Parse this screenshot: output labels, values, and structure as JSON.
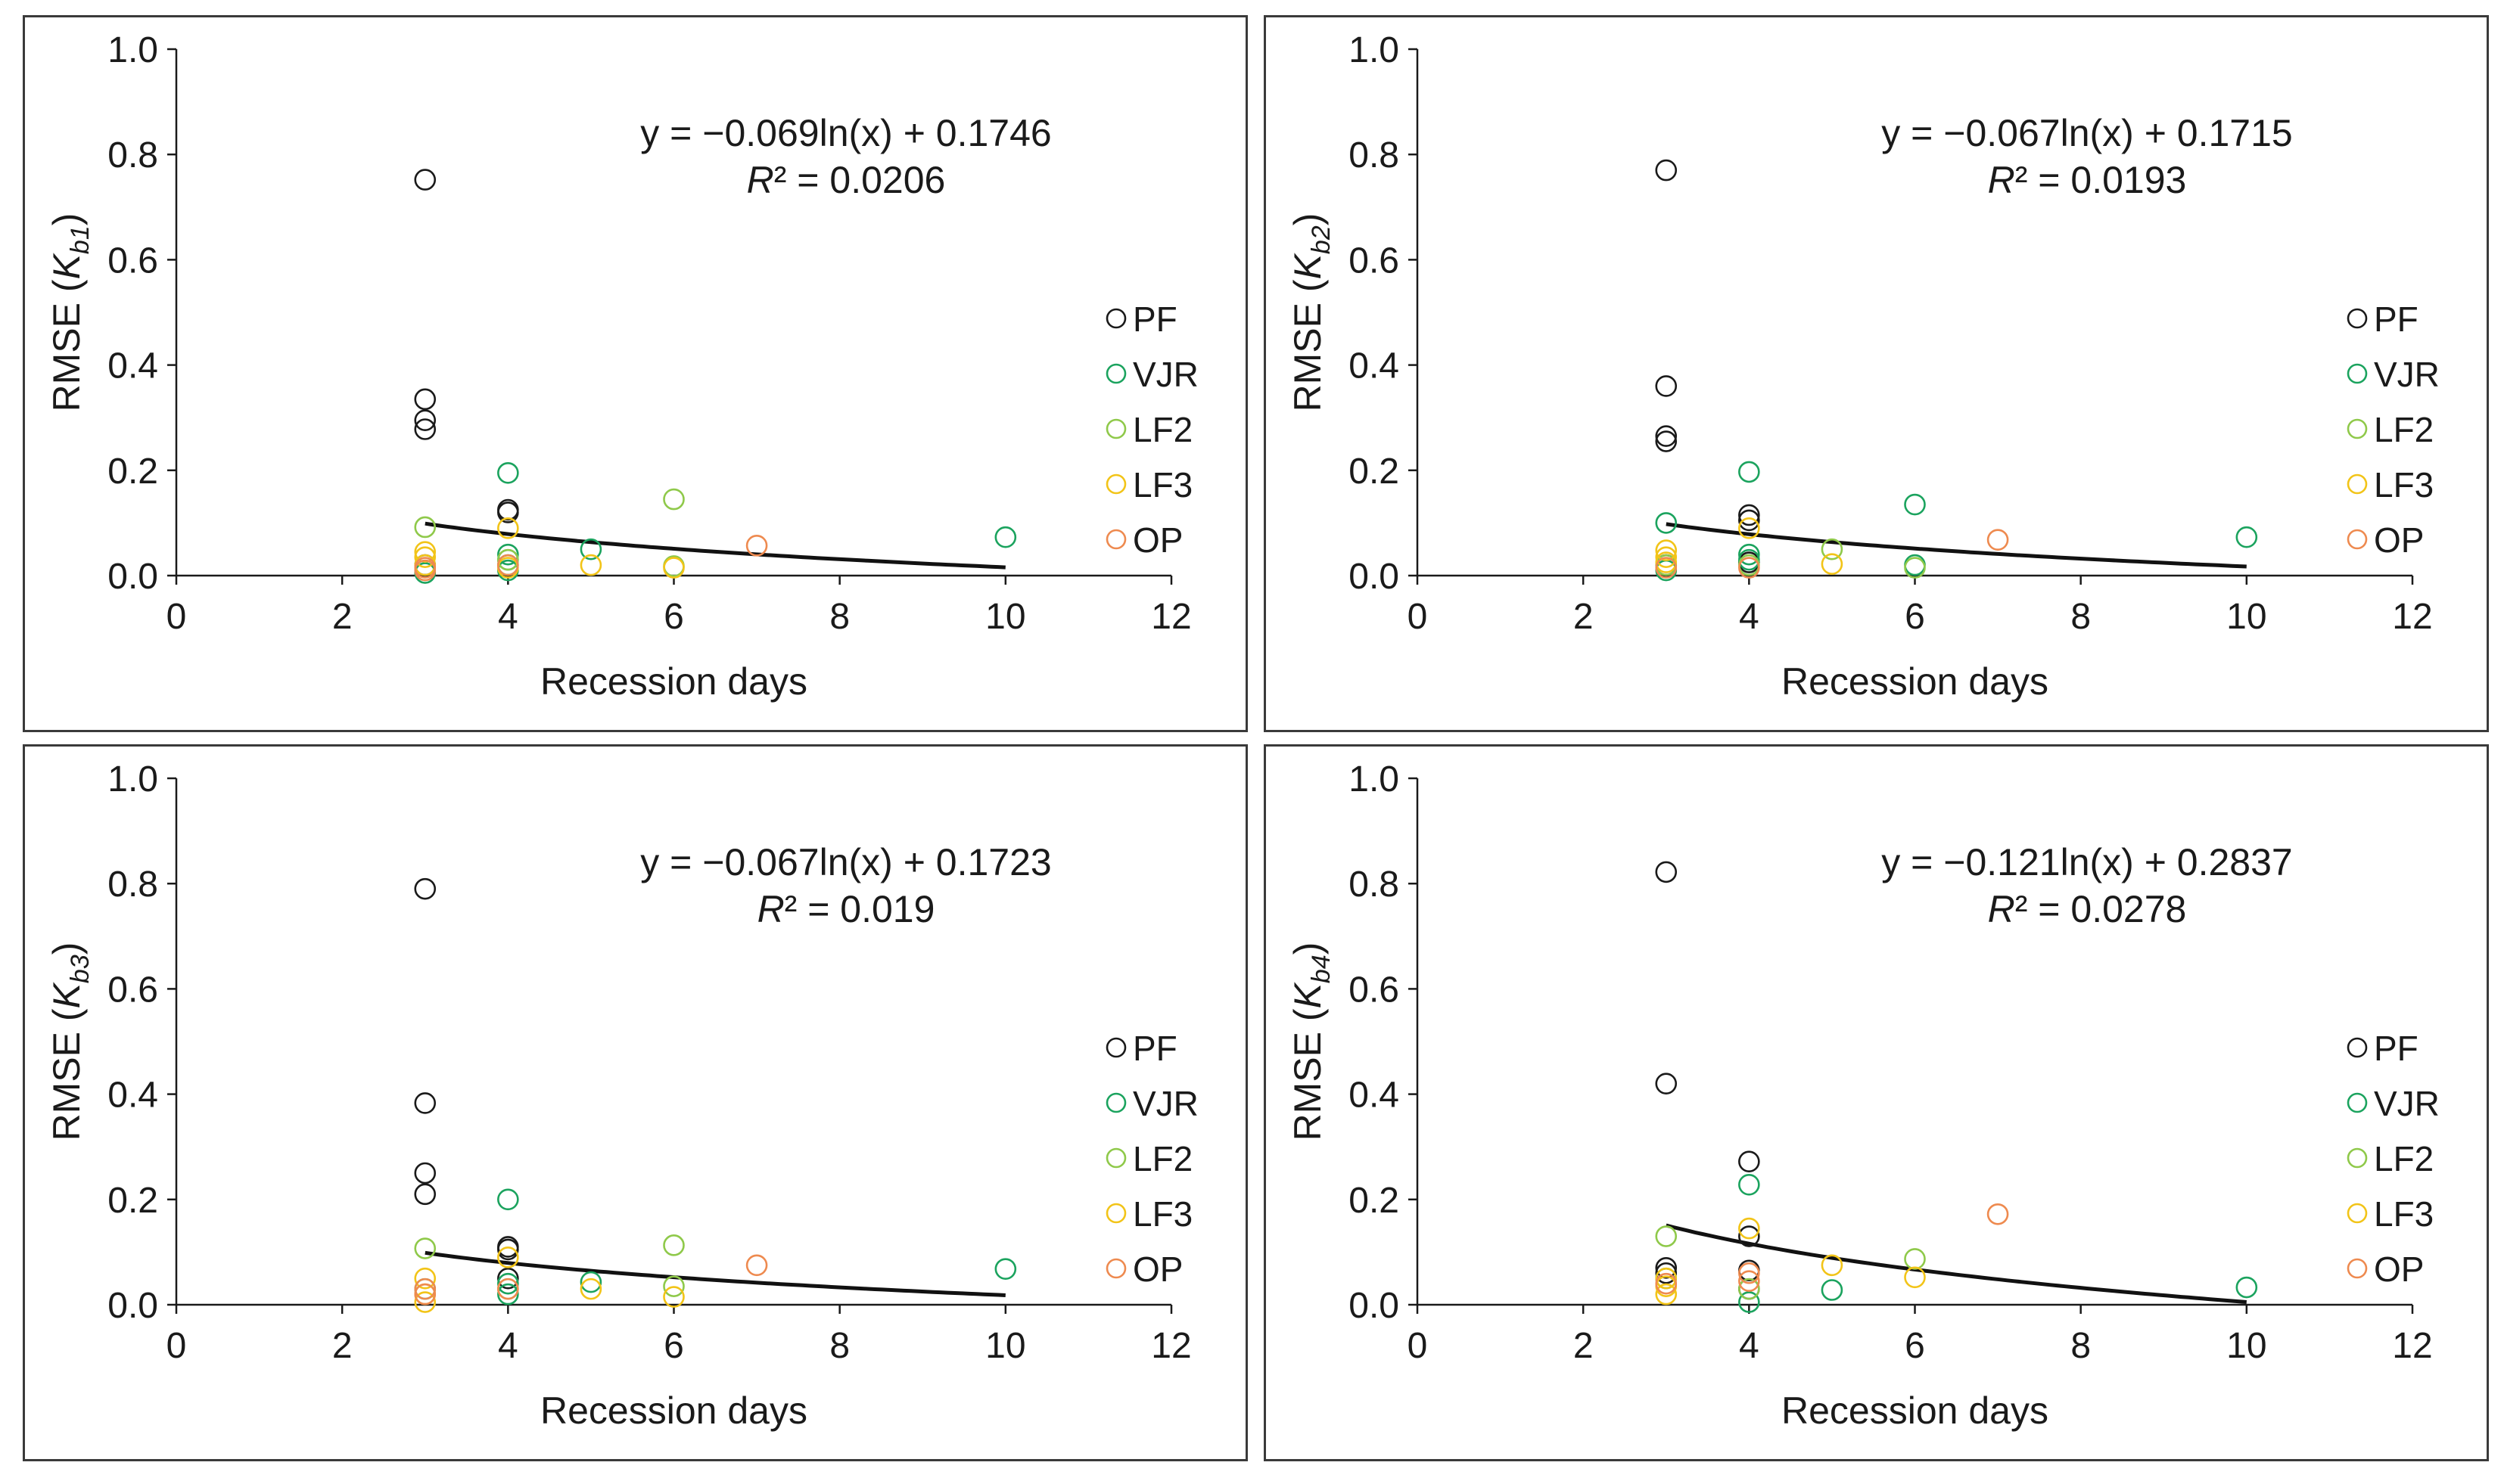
{
  "chart_data": [
    {
      "type": "scatter",
      "xlabel": "Recession days",
      "ylabel_prefix": "RMSE (",
      "ylabel_italic": "K",
      "ylabel_sub": "b1",
      "ylabel_suffix": ")",
      "xlim": [
        0,
        12
      ],
      "ylim": [
        0,
        1.0
      ],
      "x_ticks": [
        "0",
        "2",
        "4",
        "6",
        "8",
        "10",
        "12"
      ],
      "y_ticks": [
        "0.0",
        "0.2",
        "0.4",
        "0.6",
        "0.8",
        "1.0"
      ],
      "equation": "y = −0.069ln(x) + 0.1746",
      "r2_label": "R",
      "r2_value": "² = 0.0206",
      "trend": {
        "a": -0.069,
        "b": 0.1746,
        "x_range": [
          3,
          10
        ]
      },
      "series": [
        {
          "name": "PF",
          "color": "#1a1a1a",
          "points": [
            [
              3,
              0.752
            ],
            [
              3,
              0.335
            ],
            [
              3,
              0.295
            ],
            [
              3,
              0.278
            ],
            [
              3,
              0.02
            ],
            [
              4,
              0.125
            ],
            [
              4,
              0.12
            ]
          ]
        },
        {
          "name": "VJR",
          "color": "#1ba35e",
          "points": [
            [
              3,
              0.005
            ],
            [
              4,
              0.195
            ],
            [
              4,
              0.04
            ],
            [
              4,
              0.03
            ],
            [
              4,
              0.02
            ],
            [
              4,
              0.01
            ],
            [
              5,
              0.05
            ],
            [
              10,
              0.073
            ]
          ]
        },
        {
          "name": "LF2",
          "color": "#8fc94a",
          "points": [
            [
              3,
              0.092
            ],
            [
              4,
              0.03
            ],
            [
              6,
              0.145
            ],
            [
              6,
              0.018
            ]
          ]
        },
        {
          "name": "LF3",
          "color": "#f2c418",
          "points": [
            [
              3,
              0.045
            ],
            [
              3,
              0.035
            ],
            [
              3,
              0.02
            ],
            [
              4,
              0.09
            ],
            [
              4,
              0.015
            ],
            [
              5,
              0.02
            ],
            [
              6,
              0.015
            ]
          ]
        },
        {
          "name": "OP",
          "color": "#ee8a4f",
          "points": [
            [
              3,
              0.015
            ],
            [
              3,
              0.01
            ],
            [
              4,
              0.02
            ],
            [
              7,
              0.057
            ]
          ]
        }
      ]
    },
    {
      "type": "scatter",
      "xlabel": "Recession days",
      "ylabel_prefix": "RMSE (",
      "ylabel_italic": "K",
      "ylabel_sub": "b2",
      "ylabel_suffix": ")",
      "xlim": [
        0,
        12
      ],
      "ylim": [
        0,
        1.0
      ],
      "x_ticks": [
        "0",
        "2",
        "4",
        "6",
        "8",
        "10",
        "12"
      ],
      "y_ticks": [
        "0.0",
        "0.2",
        "0.4",
        "0.6",
        "0.8",
        "1.0"
      ],
      "equation": "y = −0.067ln(x) + 0.1715",
      "r2_label": "R",
      "r2_value": "² = 0.0193",
      "trend": {
        "a": -0.067,
        "b": 0.1715,
        "x_range": [
          3,
          10
        ]
      },
      "series": [
        {
          "name": "PF",
          "color": "#1a1a1a",
          "points": [
            [
              3,
              0.77
            ],
            [
              3,
              0.36
            ],
            [
              3,
              0.265
            ],
            [
              3,
              0.255
            ],
            [
              3,
              0.02
            ],
            [
              4,
              0.115
            ],
            [
              4,
              0.105
            ],
            [
              4,
              0.025
            ]
          ]
        },
        {
          "name": "VJR",
          "color": "#1ba35e",
          "points": [
            [
              3,
              0.1
            ],
            [
              3,
              0.01
            ],
            [
              4,
              0.197
            ],
            [
              4,
              0.04
            ],
            [
              4,
              0.03
            ],
            [
              6,
              0.135
            ],
            [
              6,
              0.02
            ],
            [
              10,
              0.073
            ]
          ]
        },
        {
          "name": "LF2",
          "color": "#8fc94a",
          "points": [
            [
              3,
              0.02
            ],
            [
              4,
              0.02
            ],
            [
              5,
              0.05
            ],
            [
              6,
              0.015
            ]
          ]
        },
        {
          "name": "LF3",
          "color": "#f2c418",
          "points": [
            [
              3,
              0.048
            ],
            [
              3,
              0.035
            ],
            [
              3,
              0.025
            ],
            [
              4,
              0.09
            ],
            [
              5,
              0.022
            ]
          ]
        },
        {
          "name": "OP",
          "color": "#ee8a4f",
          "points": [
            [
              3,
              0.015
            ],
            [
              4,
              0.015
            ],
            [
              7,
              0.068
            ]
          ]
        }
      ]
    },
    {
      "type": "scatter",
      "xlabel": "Recession days",
      "ylabel_prefix": "RMSE (",
      "ylabel_italic": "K",
      "ylabel_sub": "b3",
      "ylabel_suffix": ")",
      "xlim": [
        0,
        12
      ],
      "ylim": [
        0,
        1.0
      ],
      "x_ticks": [
        "0",
        "2",
        "4",
        "6",
        "8",
        "10",
        "12"
      ],
      "y_ticks": [
        "0.0",
        "0.2",
        "0.4",
        "0.6",
        "0.8",
        "1.0"
      ],
      "equation": "y = −0.067ln(x) + 0.1723",
      "r2_label": "R",
      "r2_value": "² = 0.019",
      "trend": {
        "a": -0.067,
        "b": 0.1723,
        "x_range": [
          3,
          10
        ]
      },
      "series": [
        {
          "name": "PF",
          "color": "#1a1a1a",
          "points": [
            [
              3,
              0.79
            ],
            [
              3,
              0.383
            ],
            [
              3,
              0.25
            ],
            [
              3,
              0.21
            ],
            [
              4,
              0.11
            ],
            [
              4,
              0.105
            ],
            [
              4,
              0.05
            ]
          ]
        },
        {
          "name": "VJR",
          "color": "#1ba35e",
          "points": [
            [
              3,
              0.03
            ],
            [
              4,
              0.2
            ],
            [
              4,
              0.04
            ],
            [
              4,
              0.02
            ],
            [
              5,
              0.043
            ],
            [
              10,
              0.068
            ]
          ]
        },
        {
          "name": "LF2",
          "color": "#8fc94a",
          "points": [
            [
              3,
              0.107
            ],
            [
              4,
              0.03
            ],
            [
              6,
              0.113
            ],
            [
              6,
              0.035
            ]
          ]
        },
        {
          "name": "LF3",
          "color": "#f2c418",
          "points": [
            [
              3,
              0.05
            ],
            [
              3,
              0.02
            ],
            [
              3,
              0.005
            ],
            [
              4,
              0.09
            ],
            [
              5,
              0.03
            ],
            [
              6,
              0.015
            ]
          ]
        },
        {
          "name": "OP",
          "color": "#ee8a4f",
          "points": [
            [
              3,
              0.03
            ],
            [
              3,
              0.02
            ],
            [
              4,
              0.03
            ],
            [
              7,
              0.075
            ]
          ]
        }
      ]
    },
    {
      "type": "scatter",
      "xlabel": "Recession days",
      "ylabel_prefix": "RMSE (",
      "ylabel_italic": "K",
      "ylabel_sub": "b4",
      "ylabel_suffix": ")",
      "xlim": [
        0,
        12
      ],
      "ylim": [
        0,
        1.0
      ],
      "x_ticks": [
        "0",
        "2",
        "4",
        "6",
        "8",
        "10",
        "12"
      ],
      "y_ticks": [
        "0.0",
        "0.2",
        "0.4",
        "0.6",
        "0.8",
        "1.0"
      ],
      "equation": "y = −0.121ln(x) + 0.2837",
      "r2_label": "R",
      "r2_value": "² = 0.0278",
      "trend": {
        "a": -0.121,
        "b": 0.2837,
        "x_range": [
          3,
          10
        ]
      },
      "series": [
        {
          "name": "PF",
          "color": "#1a1a1a",
          "points": [
            [
              3,
              0.822
            ],
            [
              3,
              0.42
            ],
            [
              3,
              0.07
            ],
            [
              3,
              0.06
            ],
            [
              4,
              0.272
            ],
            [
              4,
              0.13
            ],
            [
              4,
              0.065
            ],
            [
              4,
              0.03
            ]
          ]
        },
        {
          "name": "VJR",
          "color": "#1ba35e",
          "points": [
            [
              3,
              0.05
            ],
            [
              4,
              0.228
            ],
            [
              4,
              0.005
            ],
            [
              5,
              0.028
            ],
            [
              10,
              0.033
            ]
          ]
        },
        {
          "name": "LF2",
          "color": "#8fc94a",
          "points": [
            [
              3,
              0.13
            ],
            [
              4,
              0.03
            ],
            [
              6,
              0.087
            ]
          ]
        },
        {
          "name": "LF3",
          "color": "#f2c418",
          "points": [
            [
              3,
              0.05
            ],
            [
              3,
              0.035
            ],
            [
              3,
              0.02
            ],
            [
              4,
              0.145
            ],
            [
              5,
              0.075
            ],
            [
              6,
              0.052
            ]
          ]
        },
        {
          "name": "OP",
          "color": "#ee8a4f",
          "points": [
            [
              3,
              0.04
            ],
            [
              4,
              0.06
            ],
            [
              4,
              0.045
            ],
            [
              7,
              0.172
            ]
          ]
        }
      ]
    }
  ]
}
